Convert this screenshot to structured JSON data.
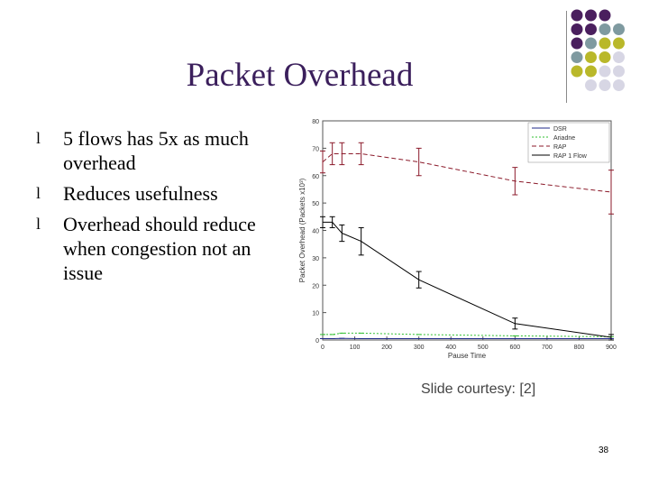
{
  "slide": {
    "title": "Packet Overhead",
    "bullets": [
      "5 flows has 5x as much overhead",
      "Reduces usefulness",
      "Overhead should reduce when congestion not an issue"
    ],
    "bullet_glyph": "l",
    "courtesy": "Slide courtesy: [2]",
    "page_number": "38",
    "colors": {
      "title": "#3b1f5c",
      "dot_purple": "#4a1f5e",
      "dot_teal": "#7f9aa0",
      "dot_olive": "#b9b82a",
      "dot_lavender": "#d7d6e4"
    }
  },
  "chart_data": {
    "type": "line",
    "title": "",
    "xlabel": "Pause Time",
    "ylabel": "Packet Overhead (Packets x10³)",
    "xlim": [
      0,
      900
    ],
    "ylim": [
      0,
      80
    ],
    "xticks": [
      "0",
      "100",
      "200",
      "300",
      "400",
      "500",
      "600",
      "700",
      "800",
      "900"
    ],
    "yticks": [
      "0",
      "10",
      "20",
      "30",
      "40",
      "50",
      "60",
      "70",
      "80"
    ],
    "legend_position": "top-right",
    "series": [
      {
        "name": "DSR",
        "color": "#1f2a8a",
        "dash": "",
        "x": [
          0,
          30,
          60,
          120,
          300,
          600,
          900
        ],
        "y": [
          0.5,
          0.5,
          0.6,
          0.5,
          0.5,
          0.5,
          0.5
        ]
      },
      {
        "name": "Ariadne",
        "color": "#2fbf2f",
        "dash": "2,2",
        "x": [
          0,
          30,
          60,
          120,
          300,
          600,
          900
        ],
        "y": [
          2,
          2,
          2.5,
          2.5,
          2,
          1.5,
          1.2
        ]
      },
      {
        "name": "RAP",
        "color": "#8b1a2a",
        "dash": "5,3",
        "x": [
          0,
          30,
          60,
          120,
          300,
          600,
          900
        ],
        "y": [
          65,
          68,
          68,
          68,
          65,
          58,
          54
        ],
        "err": [
          4,
          4,
          4,
          4,
          5,
          5,
          8
        ]
      },
      {
        "name": "RAP 1 Flow",
        "color": "#000000",
        "dash": "",
        "x": [
          0,
          30,
          60,
          120,
          300,
          600,
          900
        ],
        "y": [
          43,
          43,
          39,
          36,
          22,
          6,
          1
        ],
        "err": [
          2,
          2,
          3,
          5,
          3,
          2,
          1
        ]
      }
    ]
  }
}
